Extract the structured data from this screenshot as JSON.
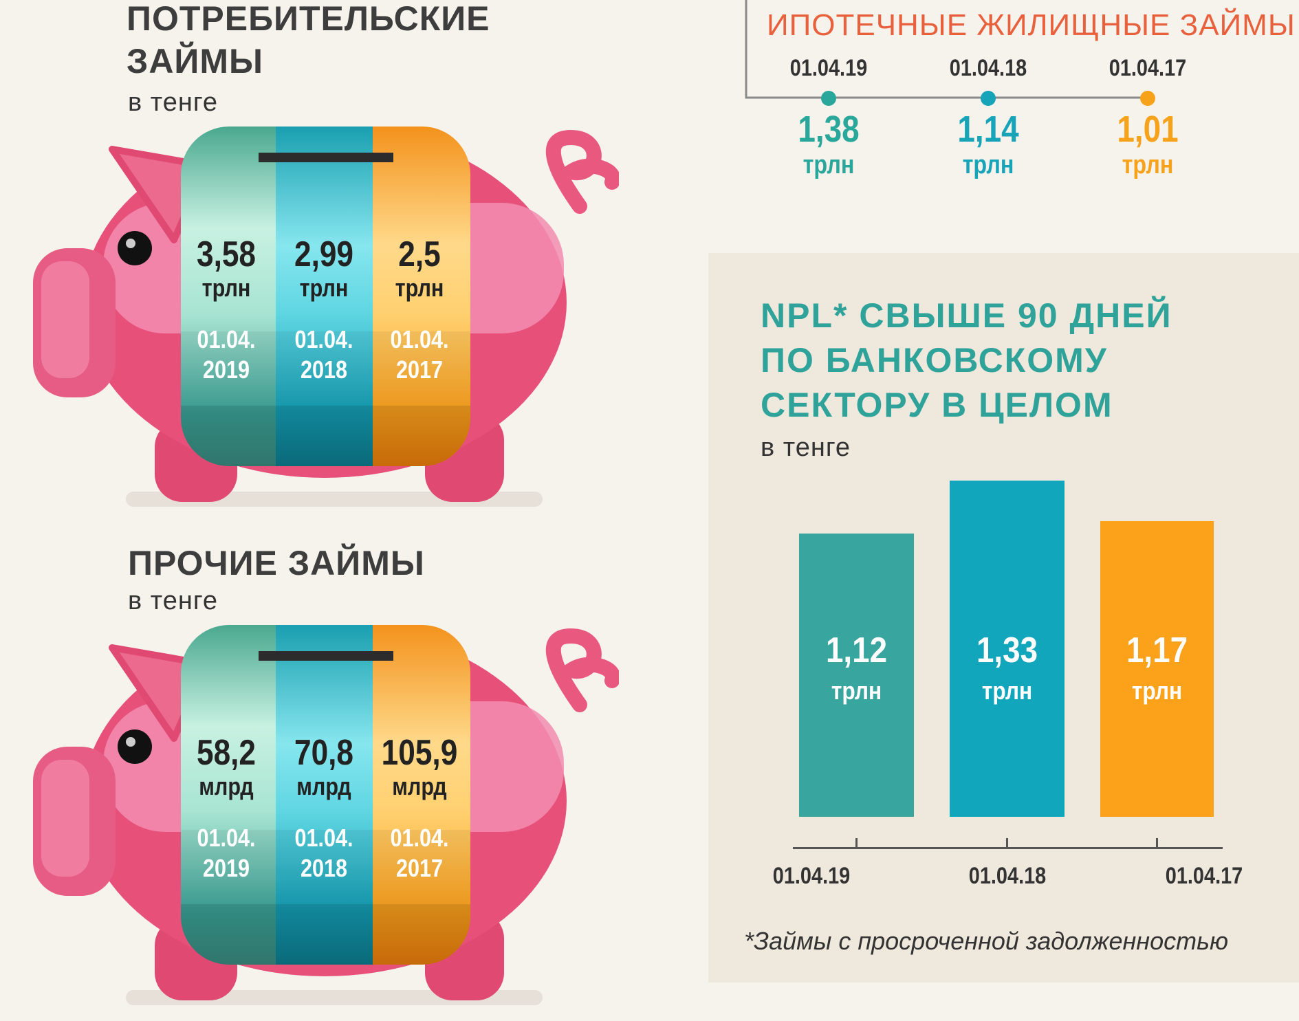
{
  "consumer": {
    "title_line1": "ПОТРЕБИТЕЛЬСКИЕ",
    "title_line2": "ЗАЙМЫ",
    "subtitle": "в тенге",
    "columns": [
      {
        "value": "3,58",
        "unit": "трлн",
        "date1": "01.04.",
        "date2": "2019"
      },
      {
        "value": "2,99",
        "unit": "трлн",
        "date1": "01.04.",
        "date2": "2018"
      },
      {
        "value": "2,5",
        "unit": "трлн",
        "date1": "01.04.",
        "date2": "2017"
      }
    ]
  },
  "other": {
    "title": "ПРОЧИЕ ЗАЙМЫ",
    "subtitle": "в тенге",
    "columns": [
      {
        "value": "58,2",
        "unit": "млрд",
        "date1": "01.04.",
        "date2": "2019"
      },
      {
        "value": "70,8",
        "unit": "млрд",
        "date1": "01.04.",
        "date2": "2018"
      },
      {
        "value": "105,9",
        "unit": "млрд",
        "date1": "01.04.",
        "date2": "2017"
      }
    ]
  },
  "mortgage": {
    "title": "ИПОТЕЧНЫЕ ЖИЛИЩНЫЕ ЗАЙМЫ",
    "points": [
      {
        "date": "01.04.19",
        "value": "1,38",
        "unit": "трлн",
        "color": "#2aa79b"
      },
      {
        "date": "01.04.18",
        "value": "1,14",
        "unit": "трлн",
        "color": "#17a3b8"
      },
      {
        "date": "01.04.17",
        "value": "1,01",
        "unit": "трлн",
        "color": "#f7a21b"
      }
    ]
  },
  "chart_data": {
    "type": "bar",
    "title": "NPL* СВЫШЕ 90 ДНЕЙ ПО БАНКОВСКОМУ СЕКТОРУ В ЦЕЛОМ",
    "title_lines": [
      "NPL* СВЫШЕ 90 ДНЕЙ",
      "ПО БАНКОВСКОМУ",
      "СЕКТОРУ В ЦЕЛОМ"
    ],
    "subtitle": "в тенге",
    "categories": [
      "01.04.19",
      "01.04.18",
      "01.04.17"
    ],
    "values": [
      1.12,
      1.33,
      1.17
    ],
    "value_labels": [
      "1,12",
      "1,33",
      "1,17"
    ],
    "unit": "трлн",
    "colors": [
      "#38a69e",
      "#12a6bd",
      "#fba11a"
    ],
    "ylim": [
      0,
      1.33
    ],
    "grid": false,
    "footnote": "*Займы с просроченной задолженностью"
  }
}
